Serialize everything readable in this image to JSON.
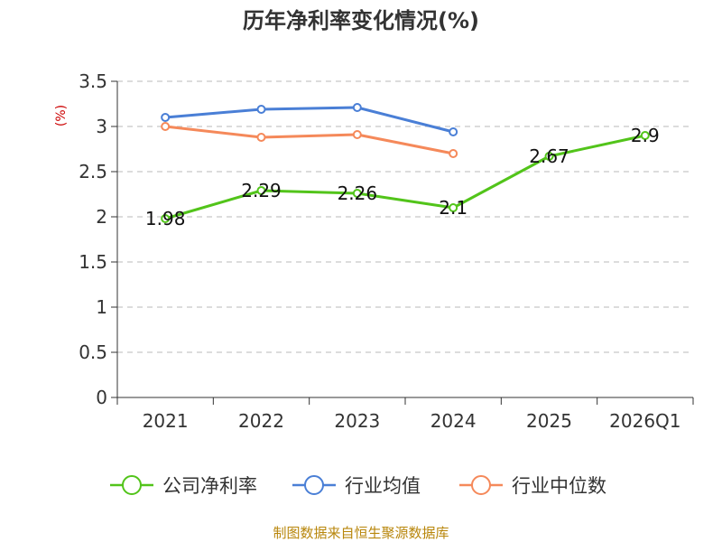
{
  "chart_data": {
    "type": "line",
    "title": "历年净利率变化情况(%)",
    "ylabel": "(%)",
    "ylim": [
      0,
      3.5
    ],
    "yticks": [
      "0",
      "0.5",
      "1",
      "1.5",
      "2",
      "2.5",
      "3",
      "3.5"
    ],
    "categories": [
      "2021",
      "2022",
      "2023",
      "2024",
      "2025",
      "2026Q1"
    ],
    "grid": true,
    "legend_position": "bottom",
    "series": [
      {
        "name": "公司净利率",
        "color": "#52c41a",
        "values": [
          1.98,
          2.29,
          2.26,
          2.1,
          2.67,
          2.9
        ],
        "labels": [
          "1.98",
          "2.29",
          "2.26",
          "2.1",
          "2.67",
          "2.9"
        ]
      },
      {
        "name": "行业均值",
        "color": "#4a7fd6",
        "values": [
          3.1,
          3.19,
          3.21,
          2.94,
          null,
          null
        ]
      },
      {
        "name": "行业中位数",
        "color": "#f5895a",
        "values": [
          3.0,
          2.88,
          2.91,
          2.7,
          null,
          null
        ]
      }
    ],
    "source": "制图数据来自恒生聚源数据库"
  }
}
